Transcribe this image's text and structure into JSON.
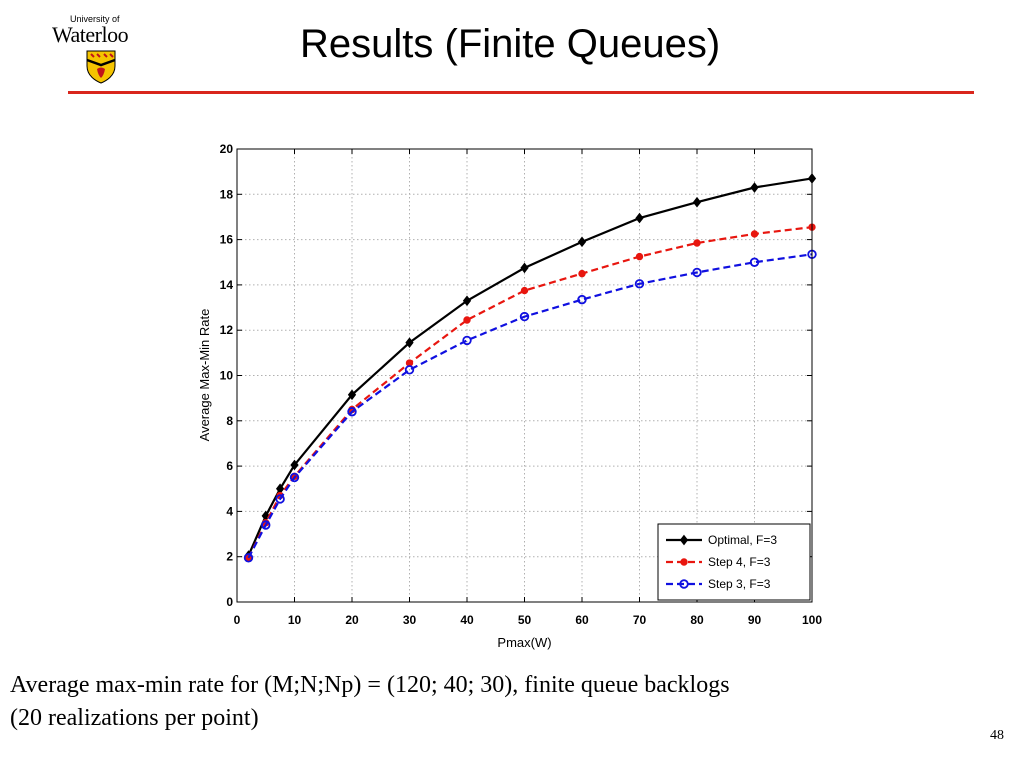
{
  "header": {
    "logo_top": "University of",
    "logo_name": "Waterloo",
    "title": "Results (Finite Queues)",
    "accent_color": "#d9261c"
  },
  "chart_data": {
    "type": "line",
    "x": [
      2,
      5,
      7.5,
      10,
      20,
      30,
      40,
      50,
      60,
      70,
      80,
      90,
      100
    ],
    "series": [
      {
        "name": "Optimal, F=3",
        "color": "#000000",
        "marker": "diamond",
        "dash": "solid",
        "values": [
          2.05,
          3.8,
          5.0,
          6.05,
          9.15,
          11.45,
          13.3,
          14.75,
          15.9,
          16.95,
          17.65,
          18.3,
          18.7
        ]
      },
      {
        "name": "Step 4, F=3",
        "color": "#e8160f",
        "marker": "dot",
        "dash": "dashed",
        "values": [
          1.95,
          3.5,
          4.7,
          5.55,
          8.5,
          10.55,
          12.45,
          13.75,
          14.5,
          15.25,
          15.85,
          16.25,
          16.55
        ]
      },
      {
        "name": "Step 3, F=3",
        "color": "#1010e0",
        "marker": "circle",
        "dash": "dashed",
        "values": [
          1.95,
          3.4,
          4.55,
          5.5,
          8.4,
          10.25,
          11.55,
          12.6,
          13.35,
          14.05,
          14.55,
          15.0,
          15.35
        ]
      }
    ],
    "xlabel": "Pmax(W)",
    "ylabel": "Average Max-Min Rate",
    "xlim": [
      0,
      100
    ],
    "ylim": [
      0,
      20
    ],
    "xticks": [
      0,
      10,
      20,
      30,
      40,
      50,
      60,
      70,
      80,
      90,
      100
    ],
    "yticks": [
      0,
      2,
      4,
      6,
      8,
      10,
      12,
      14,
      16,
      18,
      20
    ],
    "grid": true,
    "legend_position": "bottom-right"
  },
  "caption": {
    "line1": "Average max-min rate for (M;N;Np) = (120; 40; 30), finite queue backlogs",
    "line2": "(20 realizations per point)"
  },
  "page_number": "48"
}
